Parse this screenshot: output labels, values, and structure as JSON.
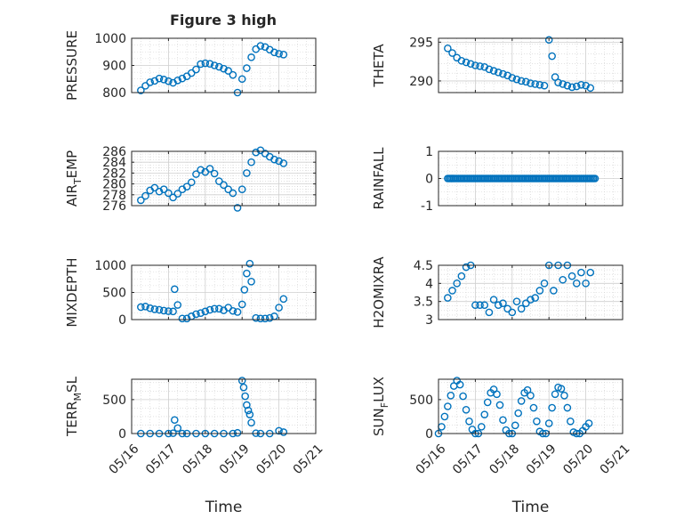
{
  "figure_title": "Figure 3 high",
  "chart_data": [
    {
      "type": "scatter",
      "ylabel": [
        "PRESSURE"
      ],
      "ylim": [
        800,
        1000
      ],
      "yticks": [
        800,
        900,
        1000
      ],
      "ytick_labels": [
        "800",
        "900",
        "1000"
      ],
      "xlim": [
        "05/16",
        "05/21"
      ],
      "grid": true,
      "x": [
        "05/16 06:00",
        "05/16 09:00",
        "05/16 12:00",
        "05/16 15:00",
        "05/16 18:00",
        "05/16 21:00",
        "05/17 00:00",
        "05/17 03:00",
        "05/17 06:00",
        "05/17 09:00",
        "05/17 12:00",
        "05/17 15:00",
        "05/17 18:00",
        "05/17 21:00",
        "05/18 00:00",
        "05/18 03:00",
        "05/18 06:00",
        "05/18 09:00",
        "05/18 12:00",
        "05/18 15:00",
        "05/18 18:00",
        "05/18 21:00",
        "05/19 00:00",
        "05/19 03:00",
        "05/19 06:00",
        "05/19 09:00",
        "05/19 12:00",
        "05/19 15:00",
        "05/19 18:00",
        "05/19 21:00",
        "05/20 00:00",
        "05/20 03:00"
      ],
      "y": [
        808,
        825,
        838,
        843,
        852,
        848,
        842,
        836,
        845,
        852,
        860,
        872,
        885,
        905,
        908,
        906,
        900,
        895,
        888,
        880,
        865,
        800,
        850,
        890,
        930,
        960,
        972,
        968,
        958,
        948,
        943,
        940
      ]
    },
    {
      "type": "scatter",
      "ylabel": [
        "THETA"
      ],
      "ylim": [
        288.5,
        295.5
      ],
      "yticks": [
        290,
        295
      ],
      "ytick_labels": [
        "290",
        "295"
      ],
      "xlim": [
        "05/16",
        "05/21"
      ],
      "grid": true,
      "x": [
        "05/16 06:00",
        "05/16 09:00",
        "05/16 12:00",
        "05/16 15:00",
        "05/16 18:00",
        "05/16 21:00",
        "05/17 00:00",
        "05/17 03:00",
        "05/17 06:00",
        "05/17 09:00",
        "05/17 12:00",
        "05/17 15:00",
        "05/17 18:00",
        "05/17 21:00",
        "05/18 00:00",
        "05/18 03:00",
        "05/18 06:00",
        "05/18 09:00",
        "05/18 12:00",
        "05/18 15:00",
        "05/18 18:00",
        "05/18 21:00",
        "05/19 00:00",
        "05/19 02:00",
        "05/19 04:00",
        "05/19 06:00",
        "05/19 09:00",
        "05/19 12:00",
        "05/19 15:00",
        "05/19 18:00",
        "05/19 21:00",
        "05/20 00:00",
        "05/20 03:00"
      ],
      "y": [
        294.2,
        293.6,
        293.0,
        292.6,
        292.4,
        292.2,
        292.0,
        291.9,
        291.8,
        291.5,
        291.3,
        291.1,
        290.9,
        290.7,
        290.4,
        290.2,
        290.0,
        289.9,
        289.7,
        289.6,
        289.5,
        289.4,
        295.3,
        293.2,
        290.5,
        289.8,
        289.6,
        289.4,
        289.2,
        289.3,
        289.5,
        289.4,
        289.1
      ]
    },
    {
      "type": "scatter",
      "ylabel": [
        "AIR",
        "T",
        "EMP"
      ],
      "ylim": [
        276,
        286
      ],
      "yticks": [
        276,
        278,
        280,
        282,
        284,
        286
      ],
      "ytick_labels": [
        "276",
        "278",
        "280",
        "282",
        "284",
        "286"
      ],
      "xlim": [
        "05/16",
        "05/21"
      ],
      "grid": true,
      "x": [
        "05/16 06:00",
        "05/16 09:00",
        "05/16 12:00",
        "05/16 15:00",
        "05/16 18:00",
        "05/16 21:00",
        "05/17 00:00",
        "05/17 03:00",
        "05/17 06:00",
        "05/17 09:00",
        "05/17 12:00",
        "05/17 15:00",
        "05/17 18:00",
        "05/17 21:00",
        "05/18 00:00",
        "05/18 03:00",
        "05/18 06:00",
        "05/18 09:00",
        "05/18 12:00",
        "05/18 15:00",
        "05/18 18:00",
        "05/18 21:00",
        "05/19 00:00",
        "05/19 03:00",
        "05/19 06:00",
        "05/19 09:00",
        "05/19 12:00",
        "05/19 15:00",
        "05/19 18:00",
        "05/19 21:00",
        "05/20 00:00",
        "05/20 03:00"
      ],
      "y": [
        277.0,
        277.8,
        278.8,
        279.3,
        278.6,
        279.0,
        278.3,
        277.5,
        278.2,
        279.0,
        279.5,
        280.3,
        281.8,
        282.6,
        282.2,
        282.8,
        281.9,
        280.5,
        279.8,
        279.0,
        278.3,
        275.6,
        279.0,
        282.0,
        284.0,
        285.8,
        286.2,
        285.6,
        285.0,
        284.5,
        284.2,
        283.8
      ]
    },
    {
      "type": "scatter",
      "ylabel": [
        "RAINFALL"
      ],
      "ylim": [
        -1,
        1
      ],
      "yticks": [
        -1,
        0,
        1
      ],
      "ytick_labels": [
        "-1",
        "0",
        "1"
      ],
      "xlim": [
        "05/16",
        "05/21"
      ],
      "grid": true,
      "x_range": [
        "05/16 06:00",
        "05/20 06:00"
      ],
      "y_constant": 0
    },
    {
      "type": "scatter",
      "ylabel": [
        "MIXDEPTH"
      ],
      "ylim": [
        0,
        1000
      ],
      "yticks": [
        0,
        500,
        1000
      ],
      "ytick_labels": [
        "0",
        "500",
        "1000"
      ],
      "xlim": [
        "05/16",
        "05/21"
      ],
      "grid": true,
      "x": [
        "05/16 06:00",
        "05/16 09:00",
        "05/16 12:00",
        "05/16 15:00",
        "05/16 18:00",
        "05/16 21:00",
        "05/17 00:00",
        "05/17 03:00",
        "05/17 04:00",
        "05/17 06:00",
        "05/17 09:00",
        "05/17 12:00",
        "05/17 15:00",
        "05/17 18:00",
        "05/17 21:00",
        "05/18 00:00",
        "05/18 03:00",
        "05/18 06:00",
        "05/18 09:00",
        "05/18 12:00",
        "05/18 15:00",
        "05/18 18:00",
        "05/18 21:00",
        "05/19 00:00",
        "05/19 01:30",
        "05/19 03:00",
        "05/19 05:00",
        "05/19 06:00",
        "05/19 09:00",
        "05/19 12:00",
        "05/19 15:00",
        "05/19 18:00",
        "05/19 21:00",
        "05/20 00:00",
        "05/20 03:00"
      ],
      "y": [
        230,
        240,
        210,
        190,
        180,
        165,
        155,
        150,
        560,
        270,
        20,
        20,
        60,
        100,
        120,
        150,
        180,
        200,
        200,
        170,
        220,
        160,
        140,
        280,
        550,
        850,
        1030,
        700,
        30,
        20,
        20,
        30,
        60,
        220,
        380
      ]
    },
    {
      "type": "scatter",
      "ylabel": [
        "H2OMIXRA"
      ],
      "ylim": [
        3,
        4.5
      ],
      "yticks": [
        3,
        3.5,
        4,
        4.5
      ],
      "ytick_labels": [
        "3",
        "3.5",
        "4",
        "4.5"
      ],
      "xlim": [
        "05/16",
        "05/21"
      ],
      "grid": true,
      "x": [
        "05/16 06:00",
        "05/16 09:00",
        "05/16 12:00",
        "05/16 15:00",
        "05/16 18:00",
        "05/16 21:00",
        "05/17 00:00",
        "05/17 03:00",
        "05/17 06:00",
        "05/17 09:00",
        "05/17 12:00",
        "05/17 15:00",
        "05/17 18:00",
        "05/17 21:00",
        "05/18 00:00",
        "05/18 03:00",
        "05/18 06:00",
        "05/18 09:00",
        "05/18 12:00",
        "05/18 15:00",
        "05/18 18:00",
        "05/18 21:00",
        "05/19 00:00",
        "05/19 03:00",
        "05/19 06:00",
        "05/19 09:00",
        "05/19 12:00",
        "05/19 15:00",
        "05/19 18:00",
        "05/19 21:00",
        "05/20 00:00",
        "05/20 03:00"
      ],
      "y": [
        3.6,
        3.8,
        4.0,
        4.2,
        4.45,
        4.5,
        3.4,
        3.4,
        3.4,
        3.2,
        3.55,
        3.4,
        3.45,
        3.3,
        3.2,
        3.5,
        3.3,
        3.45,
        3.55,
        3.6,
        3.8,
        4.0,
        4.5,
        3.8,
        4.5,
        4.1,
        4.5,
        4.2,
        4.0,
        4.3,
        4.0,
        4.3
      ]
    },
    {
      "type": "scatter",
      "ylabel": [
        "TERR",
        "M",
        "SL"
      ],
      "ylim": [
        0,
        800
      ],
      "yticks": [
        0,
        500
      ],
      "ytick_labels": [
        "0",
        "500"
      ],
      "xlim": [
        "05/16",
        "05/21"
      ],
      "grid": true,
      "x": [
        "05/16 06:00",
        "05/16 12:00",
        "05/16 18:00",
        "05/17 00:00",
        "05/17 03:00",
        "05/17 04:00",
        "05/17 06:00",
        "05/17 09:00",
        "05/17 12:00",
        "05/17 18:00",
        "05/18 00:00",
        "05/18 06:00",
        "05/18 12:00",
        "05/18 18:00",
        "05/18 21:00",
        "05/19 00:00",
        "05/19 01:00",
        "05/19 02:00",
        "05/19 03:00",
        "05/19 04:00",
        "05/19 05:00",
        "05/19 06:00",
        "05/19 09:00",
        "05/19 12:00",
        "05/19 18:00",
        "05/20 00:00",
        "05/20 03:00"
      ],
      "y": [
        0,
        0,
        0,
        0,
        5,
        200,
        80,
        0,
        0,
        0,
        0,
        0,
        0,
        0,
        10,
        780,
        680,
        550,
        420,
        340,
        280,
        160,
        5,
        0,
        0,
        40,
        20
      ]
    },
    {
      "type": "scatter",
      "ylabel": [
        "SUN",
        "F",
        "LUX"
      ],
      "ylim": [
        0,
        800
      ],
      "yticks": [
        0,
        500
      ],
      "ytick_labels": [
        "0",
        "500"
      ],
      "xlim": [
        "05/16",
        "05/21"
      ],
      "grid": true,
      "x": [
        "05/16 00:00",
        "05/16 02:00",
        "05/16 04:00",
        "05/16 06:00",
        "05/16 08:00",
        "05/16 10:00",
        "05/16 12:00",
        "05/16 14:00",
        "05/16 16:00",
        "05/16 18:00",
        "05/16 20:00",
        "05/16 22:00",
        "05/17 00:00",
        "05/17 02:00",
        "05/17 04:00",
        "05/17 06:00",
        "05/17 08:00",
        "05/17 10:00",
        "05/17 12:00",
        "05/17 14:00",
        "05/17 16:00",
        "05/17 18:00",
        "05/17 20:00",
        "05/17 22:00",
        "05/18 00:00",
        "05/18 02:00",
        "05/18 04:00",
        "05/18 06:00",
        "05/18 08:00",
        "05/18 10:00",
        "05/18 12:00",
        "05/18 14:00",
        "05/18 16:00",
        "05/18 18:00",
        "05/18 20:00",
        "05/18 22:00",
        "05/19 00:00",
        "05/19 02:00",
        "05/19 04:00",
        "05/19 06:00",
        "05/19 08:00",
        "05/19 10:00",
        "05/19 12:00",
        "05/19 14:00",
        "05/19 16:00",
        "05/19 18:00",
        "05/19 20:00",
        "05/19 22:00",
        "05/20 00:00",
        "05/20 02:00"
      ],
      "y": [
        0,
        100,
        250,
        400,
        560,
        700,
        780,
        720,
        550,
        350,
        180,
        60,
        0,
        0,
        100,
        280,
        460,
        600,
        650,
        580,
        420,
        200,
        50,
        0,
        0,
        120,
        300,
        480,
        600,
        640,
        560,
        380,
        180,
        30,
        0,
        0,
        150,
        380,
        580,
        680,
        660,
        560,
        380,
        180,
        20,
        0,
        0,
        40,
        100,
        150
      ]
    }
  ],
  "xtick_labels": [
    "05/16",
    "05/17",
    "05/18",
    "05/19",
    "05/20",
    "05/21"
  ],
  "xlabel": "Time",
  "colors": {
    "marker": "#0072bd",
    "axis": "#262626",
    "grid": "#cfcfcf"
  }
}
